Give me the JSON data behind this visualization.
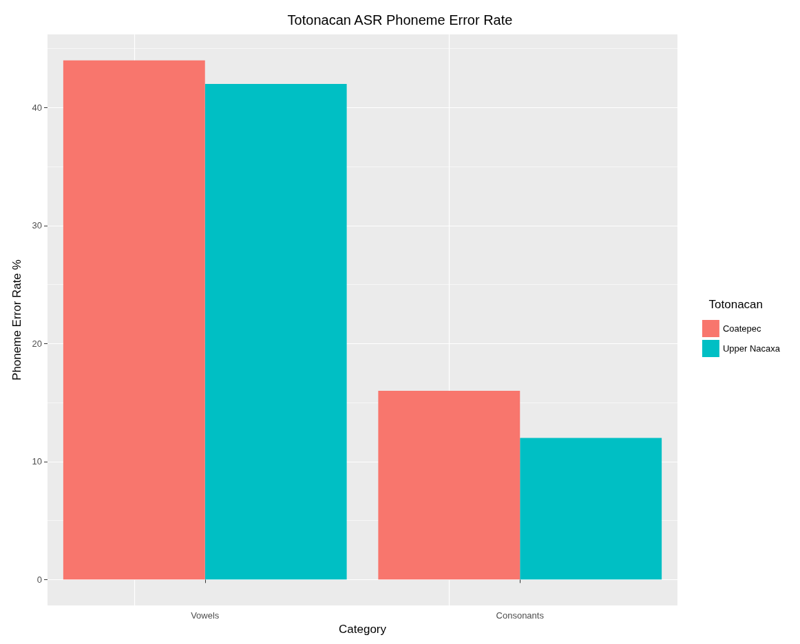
{
  "chart_data": {
    "type": "bar",
    "title": "Totonacan ASR Phoneme Error Rate",
    "xlabel": "Category",
    "ylabel": "Phoneme Error Rate %",
    "legend_title": "Totonacan",
    "categories": [
      "Vowels",
      "Consonants"
    ],
    "series": [
      {
        "name": "Coatepec",
        "color": "#f8766d",
        "values": [
          44,
          16
        ]
      },
      {
        "name": "Upper Nacaxa",
        "color": "#00bfc4",
        "values": [
          42,
          12
        ]
      }
    ],
    "ylim": [
      -2.2,
      46.2
    ],
    "yticks": [
      0,
      10,
      20,
      30,
      40
    ],
    "grid": true,
    "legend": "right"
  }
}
